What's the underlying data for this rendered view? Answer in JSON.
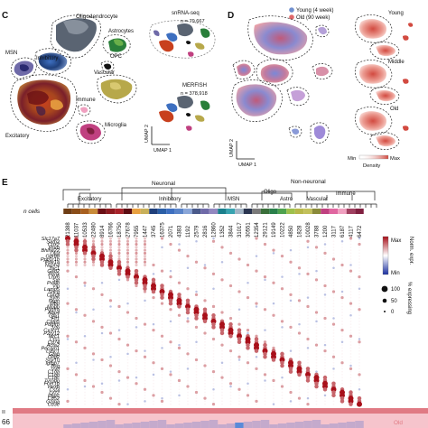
{
  "panel_c": {
    "letter": "C",
    "clusters": {
      "oligodendrocyte": "Oligodendrocyte",
      "astrocytes": "Astrocytes",
      "msn": "MSN",
      "inhibitory": "Inhibitory",
      "opc": "OPC",
      "vascular": "Vascular",
      "excitatory": "Excitatory",
      "immune": "Immune",
      "microglia": "Microglia"
    },
    "snrna_label": "snRNA-seq",
    "snrna_n": "n = 79,667",
    "merfish_label": "MERFISH",
    "merfish_n": "n = 378,918",
    "umap2": "UMAP 2",
    "umap1": "UMAP 1"
  },
  "panel_d": {
    "letter": "D",
    "legend_young": "Young (4 week)",
    "legend_old": "Old (90 week)",
    "young_label": "Young",
    "middle_label": "Middle",
    "old_label": "Old",
    "min_label": "Min",
    "max_label": "Max",
    "density_label": "Density",
    "umap2": "UMAP 2",
    "umap1": "UMAP 1",
    "colors": {
      "young": "#6f8fcf",
      "old": "#e0686a",
      "density": "#d24a40"
    }
  },
  "panel_e": {
    "letter": "E",
    "groups": {
      "neuronal": "Neuronal",
      "non_neuronal": "Non-neuronal",
      "excitatory": "Excitatory",
      "inhibitory": "Inhibitory",
      "msn": "MSN",
      "oligo": "Oligo",
      "astro": "Astro",
      "vascular": "Vascular",
      "immune": "Immune"
    },
    "n_cells_label": "n cells",
    "n_cells": [
      "21388",
      "11037",
      "10533",
      "22480",
      "8914",
      "16766",
      "18750",
      "27678",
      "7955",
      "1447",
      "3745",
      "16375",
      "2071",
      "4383",
      "1192",
      "2579",
      "2816",
      "12860",
      "1352",
      "3844",
      "31017",
      "30551",
      "12354",
      "29121",
      "19149",
      "10222",
      "4850",
      "1828",
      "10028",
      "3788",
      "1200",
      "3117",
      "6187",
      "4117",
      "6472"
    ],
    "column_colors": [
      "#6e3d14",
      "#8a4d18",
      "#a8601f",
      "#c98b3a",
      "#6b1015",
      "#8e1b20",
      "#a8232a",
      "#5c0d12",
      "#e8a040",
      "#c8b05a",
      "#1f3f7a",
      "#2a5ea6",
      "#3d6fc0",
      "#5a84c8",
      "#8aa6d8",
      "#4a5a8a",
      "#6f6aa8",
      "#9388c0",
      "#1a7f8c",
      "#38a3b0",
      "#a3b4c4",
      "#2a3550",
      "#7a7a7a",
      "#3a6f3a",
      "#2a7f4a",
      "#4ea24e",
      "#9ec04c",
      "#b7b74a",
      "#c2c05a",
      "#8a8a3a",
      "#c04080",
      "#e066a0",
      "#f0a0c0",
      "#a04060",
      "#802040"
    ],
    "genes": [
      "Slc17a7",
      "Satb2",
      "Cux2",
      "Rorb",
      "Bhlhe22",
      "Otof",
      "Gpr88",
      "Ppp1r1b",
      "Pde1a",
      "Nxph4",
      "Tac1",
      "Gad2",
      "Penk",
      "Lhx6",
      "Sst",
      "Pvalb",
      "Vip",
      "Lamp5",
      "Sncg",
      "Cplx3",
      "Syt6",
      "Nrgn",
      "Mbp",
      "Mobp",
      "Pdgfra",
      "Aqp4",
      "Gja1",
      "Flt1",
      "Cldn5",
      "Pdgfrb",
      "Vtn",
      "Cx3cr1",
      "P2ry12",
      "Mrc1",
      "Ctss",
      "Cd74",
      "Acta2",
      "Pecam1",
      "Ly6c1",
      "Gfap",
      "Olig2",
      "Sox10",
      "Igfbp7",
      "Bsg",
      "Vwf",
      "C1qa",
      "C1qb",
      "C1qc",
      "Tyrobp",
      "Fcer1g",
      "Hexb",
      "Cst3",
      "Lyz2",
      "Ptprc",
      "Cd52",
      "Gzma",
      "Cd3e"
    ],
    "legend_expr": "Norm. expr.",
    "legend_expr_max": "Max",
    "legend_expr_min": "Min",
    "legend_pct": "% expressing",
    "legend_pct_100": "100",
    "legend_pct_50": "50",
    "legend_pct_0": "0",
    "bar_labels": [
      "ıı",
      "66"
    ],
    "bar_right_label": "Old",
    "colors": {
      "dot_max": "#a8101a",
      "dot_mid": "#ffffff",
      "dot_min": "#1a2fa0",
      "age_old": "#e07a84",
      "age_young": "#b0b0e0"
    }
  }
}
